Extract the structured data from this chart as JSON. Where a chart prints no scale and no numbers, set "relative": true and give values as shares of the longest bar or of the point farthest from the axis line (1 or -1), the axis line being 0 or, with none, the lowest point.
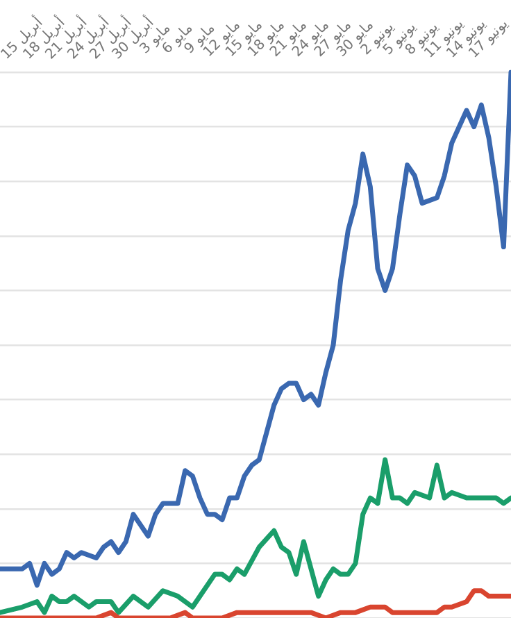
{
  "chart_data": {
    "type": "line",
    "relative": true,
    "grid": "y",
    "marker": "none",
    "line_style": "solid",
    "xlim": [
      "--04-12",
      "--06-20"
    ],
    "xticks": [
      {
        "value": "--04-15",
        "label": "15 أبريل"
      },
      {
        "value": "--04-18",
        "label": "18 أبريل"
      },
      {
        "value": "--04-21",
        "label": "21 أبريل"
      },
      {
        "value": "--04-24",
        "label": "24 أبريل"
      },
      {
        "value": "--04-27",
        "label": "27 أبريل"
      },
      {
        "value": "--04-30",
        "label": "30 أبريل"
      },
      {
        "value": "--05-03",
        "label": "3 مايو"
      },
      {
        "value": "--05-06",
        "label": "6 مايو"
      },
      {
        "value": "--05-09",
        "label": "9 مايو"
      },
      {
        "value": "--05-12",
        "label": "12 مايو"
      },
      {
        "value": "--05-15",
        "label": "15 مايو"
      },
      {
        "value": "--05-18",
        "label": "18 مايو"
      },
      {
        "value": "--05-21",
        "label": "21 مايو"
      },
      {
        "value": "--05-24",
        "label": "24 مايو"
      },
      {
        "value": "--05-27",
        "label": "27 مايو"
      },
      {
        "value": "--05-30",
        "label": "30 مايو"
      },
      {
        "value": "--06-02",
        "label": "2 يونيو"
      },
      {
        "value": "--06-05",
        "label": "5 يونيو"
      },
      {
        "value": "--06-08",
        "label": "8 يونيو"
      },
      {
        "value": "--06-11",
        "label": "11 يونيو"
      },
      {
        "value": "--06-14",
        "label": "14 يونيو"
      },
      {
        "value": "--06-17",
        "label": "17 يونيو"
      }
    ],
    "series": [
      {
        "color": "#3a68b0",
        "x": [
          "--04-12",
          "--04-15",
          "--04-16",
          "--04-17",
          "--04-18",
          "--04-19",
          "--04-20",
          "--04-21",
          "--04-22",
          "--04-23",
          "--04-25",
          "--04-26",
          "--04-27",
          "--04-28",
          "--04-29",
          "--04-30",
          "--05-01",
          "--05-02",
          "--05-03",
          "--05-04",
          "--05-06",
          "--05-07",
          "--05-08",
          "--05-09",
          "--05-10",
          "--05-11",
          "--05-12",
          "--05-13",
          "--05-14",
          "--05-15",
          "--05-16",
          "--05-17",
          "--05-19",
          "--05-20",
          "--05-21",
          "--05-22",
          "--05-23",
          "--05-24",
          "--05-25",
          "--05-26",
          "--05-27",
          "--05-28",
          "--05-29",
          "--05-30",
          "--05-31",
          "--06-01",
          "--06-02",
          "--06-03",
          "--06-04",
          "--06-05",
          "--06-06",
          "--06-07",
          "--06-08",
          "--06-10",
          "--06-11",
          "--06-12",
          "--06-14",
          "--06-15",
          "--06-16",
          "--06-17",
          "--06-18",
          "--06-19",
          "--06-20"
        ],
        "values": [
          0.09,
          0.09,
          0.1,
          0.06,
          0.1,
          0.08,
          0.09,
          0.12,
          0.11,
          0.12,
          0.11,
          0.13,
          0.14,
          0.12,
          0.14,
          0.19,
          0.17,
          0.15,
          0.19,
          0.21,
          0.21,
          0.27,
          0.26,
          0.22,
          0.19,
          0.19,
          0.18,
          0.22,
          0.22,
          0.26,
          0.28,
          0.29,
          0.39,
          0.42,
          0.43,
          0.43,
          0.4,
          0.41,
          0.39,
          0.45,
          0.5,
          0.62,
          0.71,
          0.76,
          0.85,
          0.79,
          0.64,
          0.6,
          0.64,
          0.74,
          0.83,
          0.81,
          0.76,
          0.77,
          0.81,
          0.87,
          0.93,
          0.9,
          0.94,
          0.88,
          0.79,
          0.68,
          1.0
        ]
      },
      {
        "color": "#1a9e6a",
        "x": [
          "--04-12",
          "--04-15",
          "--04-17",
          "--04-18",
          "--04-19",
          "--04-20",
          "--04-21",
          "--04-22",
          "--04-24",
          "--04-25",
          "--04-27",
          "--04-28",
          "--04-30",
          "--05-02",
          "--05-04",
          "--05-06",
          "--05-08",
          "--05-09",
          "--05-11",
          "--05-12",
          "--05-13",
          "--05-14",
          "--05-15",
          "--05-17",
          "--05-19",
          "--05-20",
          "--05-21",
          "--05-22",
          "--05-23",
          "--05-24",
          "--05-25",
          "--05-26",
          "--05-27",
          "--05-28",
          "--05-29",
          "--05-30",
          "--05-31",
          "--06-01",
          "--06-02",
          "--06-03",
          "--06-04",
          "--06-05",
          "--06-06",
          "--06-07",
          "--06-09",
          "--06-10",
          "--06-11",
          "--06-12",
          "--06-14",
          "--06-15",
          "--06-17",
          "--06-18",
          "--06-19",
          "--06-20"
        ],
        "values": [
          0.01,
          0.02,
          0.03,
          0.01,
          0.04,
          0.03,
          0.03,
          0.04,
          0.02,
          0.03,
          0.03,
          0.01,
          0.04,
          0.02,
          0.05,
          0.04,
          0.02,
          0.04,
          0.08,
          0.08,
          0.07,
          0.09,
          0.08,
          0.13,
          0.16,
          0.13,
          0.12,
          0.08,
          0.14,
          0.09,
          0.04,
          0.07,
          0.09,
          0.08,
          0.08,
          0.1,
          0.19,
          0.22,
          0.21,
          0.29,
          0.22,
          0.22,
          0.21,
          0.23,
          0.22,
          0.28,
          0.22,
          0.23,
          0.22,
          0.22,
          0.22,
          0.22,
          0.21,
          0.22
        ]
      },
      {
        "color": "#d9452f",
        "x": [
          "--04-12",
          "--04-15",
          "--04-18",
          "--04-21",
          "--04-25",
          "--04-27",
          "--04-28",
          "--05-01",
          "--05-03",
          "--05-05",
          "--05-07",
          "--05-08",
          "--05-12",
          "--05-14",
          "--05-17",
          "--05-19",
          "--05-21",
          "--05-23",
          "--05-24",
          "--05-26",
          "--05-28",
          "--05-30",
          "--06-01",
          "--06-03",
          "--06-04",
          "--06-07",
          "--06-10",
          "--06-11",
          "--06-12",
          "--06-14",
          "--06-15",
          "--06-16",
          "--06-17",
          "--06-18",
          "--06-20"
        ],
        "values": [
          0,
          0,
          0,
          0,
          0,
          0.01,
          0,
          0,
          0,
          0,
          0.01,
          0,
          0,
          0.01,
          0.01,
          0.01,
          0.01,
          0.01,
          0.01,
          0,
          0.01,
          0.01,
          0.02,
          0.02,
          0.01,
          0.01,
          0.01,
          0.02,
          0.02,
          0.03,
          0.05,
          0.05,
          0.04,
          0.04,
          0.04
        ]
      }
    ]
  }
}
